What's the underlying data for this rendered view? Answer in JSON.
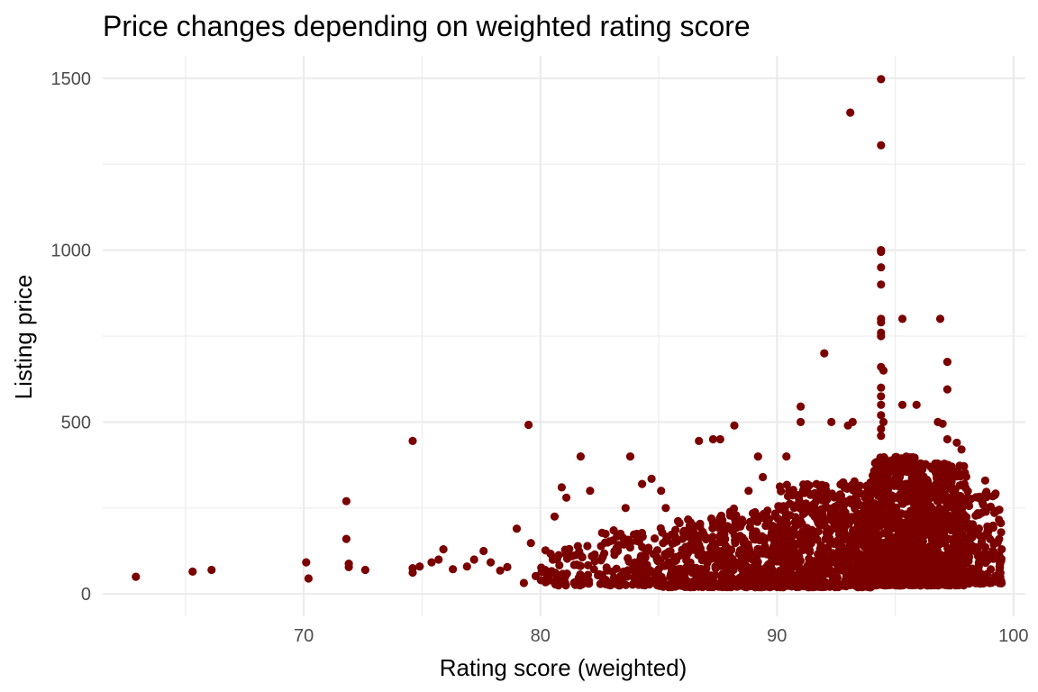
{
  "chart_data": {
    "type": "scatter",
    "title": "Price changes depending on weighted rating score",
    "xlabel": "Rating score (weighted)",
    "ylabel": "Listing price",
    "xlim": [
      61.5,
      100.5
    ],
    "ylim": [
      -65,
      1565
    ],
    "x_ticks": [
      70,
      80,
      90,
      100
    ],
    "x_minor_ticks": [
      65,
      75,
      85,
      95
    ],
    "y_ticks": [
      0,
      500,
      1000,
      1500
    ],
    "y_minor_ticks": [
      250,
      750,
      1250
    ],
    "grid": true,
    "point_color": "#7a0000",
    "points": {
      "outliers": [
        [
          62.9,
          50
        ],
        [
          65.3,
          65
        ],
        [
          66.1,
          70
        ],
        [
          70.1,
          92
        ],
        [
          70.2,
          45
        ],
        [
          71.8,
          270
        ],
        [
          71.8,
          160
        ],
        [
          71.9,
          88
        ],
        [
          71.9,
          78
        ],
        [
          72.6,
          70
        ],
        [
          74.6,
          445
        ],
        [
          74.6,
          75
        ],
        [
          74.6,
          62
        ],
        [
          74.9,
          80
        ],
        [
          75.4,
          92
        ],
        [
          75.7,
          100
        ],
        [
          75.9,
          130
        ],
        [
          76.3,
          72
        ],
        [
          76.9,
          80
        ],
        [
          77.2,
          100
        ],
        [
          77.6,
          125
        ],
        [
          77.9,
          92
        ],
        [
          78.3,
          68
        ],
        [
          78.6,
          78
        ],
        [
          79.0,
          190
        ],
        [
          79.3,
          32
        ],
        [
          79.5,
          492
        ],
        [
          79.6,
          148
        ],
        [
          79.8,
          52
        ],
        [
          80.2,
          70
        ],
        [
          80.6,
          225
        ],
        [
          80.9,
          310
        ],
        [
          81.1,
          280
        ],
        [
          81.7,
          400
        ],
        [
          82.1,
          300
        ],
        [
          82.3,
          95
        ],
        [
          82.7,
          118
        ],
        [
          83.1,
          185
        ],
        [
          83.6,
          250
        ],
        [
          83.8,
          400
        ],
        [
          84.3,
          320
        ],
        [
          84.7,
          335
        ],
        [
          85.1,
          300
        ],
        [
          85.3,
          250
        ],
        [
          86.7,
          445
        ],
        [
          87.3,
          450
        ],
        [
          87.6,
          450
        ],
        [
          88.2,
          490
        ],
        [
          88.8,
          300
        ],
        [
          89.2,
          400
        ],
        [
          89.4,
          340
        ],
        [
          90.4,
          400
        ],
        [
          91.0,
          545
        ],
        [
          91.0,
          500
        ],
        [
          92.0,
          700
        ],
        [
          92.3,
          500
        ],
        [
          93.1,
          1400
        ],
        [
          93.0,
          490
        ],
        [
          93.2,
          500
        ],
        [
          94.4,
          1497
        ],
        [
          94.4,
          1305
        ],
        [
          94.4,
          1000
        ],
        [
          94.4,
          995
        ],
        [
          94.4,
          950
        ],
        [
          94.4,
          900
        ],
        [
          94.4,
          800
        ],
        [
          94.4,
          790
        ],
        [
          94.4,
          760
        ],
        [
          94.4,
          750
        ],
        [
          94.4,
          660
        ],
        [
          94.5,
          650
        ],
        [
          94.4,
          600
        ],
        [
          94.4,
          575
        ],
        [
          94.4,
          550
        ],
        [
          94.4,
          520
        ],
        [
          94.5,
          500
        ],
        [
          94.4,
          480
        ],
        [
          94.4,
          460
        ],
        [
          95.3,
          800
        ],
        [
          95.3,
          550
        ],
        [
          95.9,
          550
        ],
        [
          96.9,
          800
        ],
        [
          97.2,
          675
        ],
        [
          97.2,
          595
        ],
        [
          96.8,
          500
        ],
        [
          97.0,
          495
        ],
        [
          97.2,
          450
        ],
        [
          97.8,
          420
        ],
        [
          97.6,
          440
        ],
        [
          99.4,
          245
        ],
        [
          99.5,
          130
        ],
        [
          99.4,
          112
        ],
        [
          98.8,
          330
        ]
      ],
      "cluster_bands": [
        {
          "x_range": [
            80.0,
            82.5
          ],
          "y_range": [
            25,
            140
          ],
          "count": 70
        },
        {
          "x_range": [
            82.5,
            85.0
          ],
          "y_range": [
            25,
            180
          ],
          "count": 120
        },
        {
          "x_range": [
            85.0,
            87.5
          ],
          "y_range": [
            20,
            220
          ],
          "count": 200
        },
        {
          "x_range": [
            87.5,
            90.0
          ],
          "y_range": [
            20,
            250
          ],
          "count": 320
        },
        {
          "x_range": [
            90.0,
            92.5
          ],
          "y_range": [
            20,
            320
          ],
          "count": 420
        },
        {
          "x_range": [
            92.5,
            94.0
          ],
          "y_range": [
            20,
            330
          ],
          "count": 300
        },
        {
          "x_range": [
            94.0,
            96.0
          ],
          "y_range": [
            25,
            400
          ],
          "count": 650
        },
        {
          "x_range": [
            96.0,
            98.0
          ],
          "y_range": [
            25,
            380
          ],
          "count": 600
        },
        {
          "x_range": [
            98.0,
            99.5
          ],
          "y_range": [
            30,
            300
          ],
          "count": 160
        }
      ]
    }
  }
}
